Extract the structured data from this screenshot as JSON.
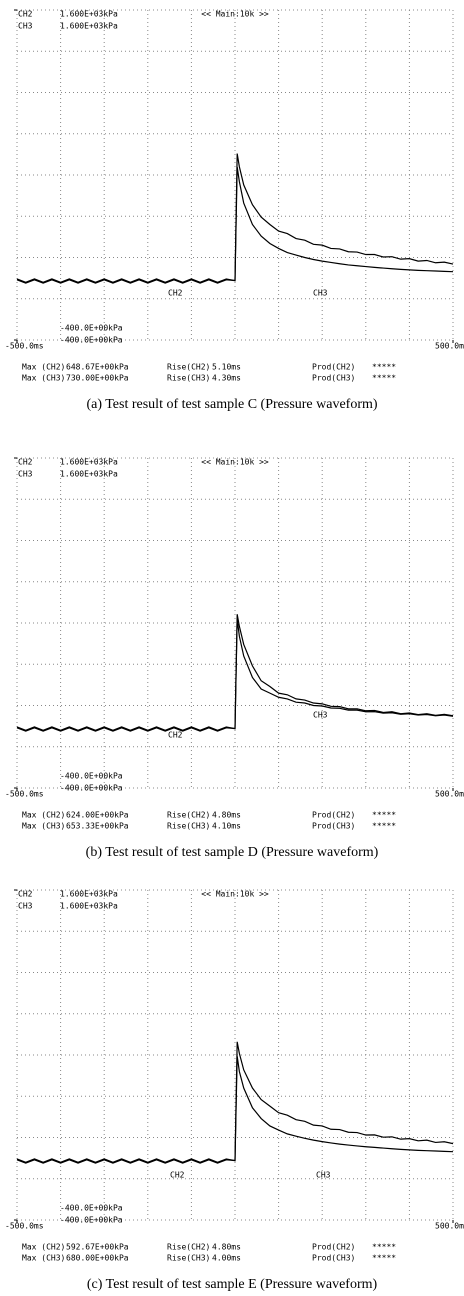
{
  "chart_data": [
    {
      "type": "line",
      "header": "<< Main:10k >>",
      "caption": "(a)  Test result of test sample C (Pressure waveform)",
      "x": [
        -500,
        -480,
        -460,
        -440,
        -420,
        -400,
        -380,
        -360,
        -340,
        -320,
        -300,
        -280,
        -260,
        -240,
        -220,
        -200,
        -180,
        -160,
        -140,
        -120,
        -100,
        -80,
        -60,
        -40,
        -20,
        0,
        5,
        10,
        20,
        40,
        60,
        80,
        100,
        120,
        140,
        160,
        180,
        200,
        220,
        240,
        260,
        280,
        300,
        320,
        340,
        360,
        380,
        400,
        420,
        440,
        460,
        480,
        500
      ],
      "xlim": [
        -500,
        500
      ],
      "xticks": [
        {
          "value": -500,
          "label": "-500.0ms"
        },
        {
          "value": 500,
          "label": "500.0ms"
        }
      ],
      "ylim": [
        -400,
        1600
      ],
      "yticks": [
        {
          "value": 1600,
          "label": "1.600E+03kPa"
        },
        {
          "value": -400,
          "label": "-400.0E+00kPa"
        }
      ],
      "grid_divisions": [
        10,
        8
      ],
      "series": [
        {
          "name": "CH2",
          "color": "#000000",
          "values": [
            -35,
            -55,
            -35,
            -55,
            -35,
            -55,
            -35,
            -55,
            -35,
            -55,
            -35,
            -55,
            -35,
            -55,
            -35,
            -55,
            -35,
            -55,
            -35,
            -55,
            -35,
            -55,
            -35,
            -55,
            -35,
            -40,
            648.67,
            560,
            430,
            300,
            230,
            185,
            155,
            130,
            115,
            100,
            88,
            78,
            70,
            62,
            55,
            50,
            45,
            40,
            36,
            32,
            28,
            25,
            22,
            20,
            18,
            16,
            14
          ]
        },
        {
          "name": "CH3",
          "color": "#000000",
          "values": [
            -30,
            -50,
            -30,
            -50,
            -30,
            -50,
            -30,
            -50,
            -30,
            -50,
            -30,
            -50,
            -30,
            -50,
            -30,
            -50,
            -30,
            -50,
            -30,
            -50,
            -30,
            -50,
            -30,
            -50,
            -30,
            -40,
            730,
            650,
            540,
            420,
            345,
            300,
            260,
            245,
            215,
            205,
            180,
            175,
            155,
            152,
            135,
            133,
            118,
            118,
            103,
            105,
            90,
            93,
            78,
            82,
            68,
            72,
            60
          ]
        }
      ],
      "stats": [
        {
          "max_label": "Max (CH2)",
          "max": "648.67E+00kPa",
          "rise_label": "Rise(CH2)",
          "rise": "5.10ms",
          "prod_label": "Prod(CH2)",
          "prod": "*****"
        },
        {
          "max_label": "Max (CH3)",
          "max": "730.00E+00kPa",
          "rise_label": "Rise(CH3)",
          "rise": "4.30ms",
          "prod_label": "Prod(CH3)",
          "prod": "*****"
        }
      ]
    },
    {
      "type": "line",
      "header": "<< Main:10k >>",
      "caption": "(b)  Test result of test sample D (Pressure waveform)",
      "x": [
        -500,
        -480,
        -460,
        -440,
        -420,
        -400,
        -380,
        -360,
        -340,
        -320,
        -300,
        -280,
        -260,
        -240,
        -220,
        -200,
        -180,
        -160,
        -140,
        -120,
        -100,
        -80,
        -60,
        -40,
        -20,
        0,
        5,
        10,
        20,
        40,
        60,
        80,
        100,
        120,
        140,
        160,
        180,
        200,
        220,
        240,
        260,
        280,
        300,
        320,
        340,
        360,
        380,
        400,
        420,
        440,
        460,
        480,
        500
      ],
      "xlim": [
        -500,
        500
      ],
      "xticks": [
        {
          "value": -500,
          "label": "-500.0ms"
        },
        {
          "value": 500,
          "label": "500.0ms"
        }
      ],
      "ylim": [
        -400,
        1600
      ],
      "yticks": [
        {
          "value": 1600,
          "label": "1.600E+03kPa"
        },
        {
          "value": -400,
          "label": "-400.0E+00kPa"
        }
      ],
      "grid_divisions": [
        10,
        8
      ],
      "series": [
        {
          "name": "CH2",
          "color": "#000000",
          "values": [
            -35,
            -55,
            -35,
            -55,
            -35,
            -55,
            -35,
            -55,
            -35,
            -55,
            -35,
            -55,
            -35,
            -55,
            -35,
            -55,
            -35,
            -55,
            -35,
            -55,
            -35,
            -55,
            -35,
            -55,
            -35,
            -40,
            624,
            520,
            400,
            270,
            200,
            175,
            150,
            140,
            120,
            115,
            100,
            97,
            85,
            83,
            72,
            72,
            62,
            63,
            54,
            56,
            47,
            50,
            42,
            45,
            38,
            42,
            35
          ]
        },
        {
          "name": "CH3",
          "color": "#000000",
          "values": [
            -30,
            -50,
            -30,
            -50,
            -30,
            -50,
            -30,
            -50,
            -30,
            -50,
            -30,
            -50,
            -30,
            -50,
            -30,
            -50,
            -30,
            -50,
            -30,
            -50,
            -30,
            -50,
            -30,
            -50,
            -30,
            -40,
            653.33,
            580,
            470,
            340,
            250,
            215,
            175,
            165,
            140,
            133,
            115,
            110,
            95,
            93,
            80,
            80,
            68,
            70,
            58,
            62,
            50,
            55,
            45,
            50,
            40,
            46,
            38
          ]
        }
      ],
      "stats": [
        {
          "max_label": "Max (CH2)",
          "max": "624.00E+00kPa",
          "rise_label": "Rise(CH2)",
          "rise": "4.80ms",
          "prod_label": "Prod(CH2)",
          "prod": "*****"
        },
        {
          "max_label": "Max (CH3)",
          "max": "653.33E+00kPa",
          "rise_label": "Rise(CH3)",
          "rise": "4.10ms",
          "prod_label": "Prod(CH3)",
          "prod": "*****"
        }
      ]
    },
    {
      "type": "line",
      "header": "<< Main:10k >>",
      "caption": "(c)  Test result of test sample E (Pressure waveform)",
      "x": [
        -500,
        -480,
        -460,
        -440,
        -420,
        -400,
        -380,
        -360,
        -340,
        -320,
        -300,
        -280,
        -260,
        -240,
        -220,
        -200,
        -180,
        -160,
        -140,
        -120,
        -100,
        -80,
        -60,
        -40,
        -20,
        0,
        5,
        10,
        20,
        40,
        60,
        80,
        100,
        120,
        140,
        160,
        180,
        200,
        220,
        240,
        260,
        280,
        300,
        320,
        340,
        360,
        380,
        400,
        420,
        440,
        460,
        480,
        500
      ],
      "xlim": [
        -500,
        500
      ],
      "xticks": [
        {
          "value": -500,
          "label": "-500.0ms"
        },
        {
          "value": 500,
          "label": "500.0ms"
        }
      ],
      "ylim": [
        -400,
        1600
      ],
      "yticks": [
        {
          "value": 1600,
          "label": "1.600E+03kPa"
        },
        {
          "value": -400,
          "label": "-400.0E+00kPa"
        }
      ],
      "grid_divisions": [
        10,
        8
      ],
      "series": [
        {
          "name": "CH2",
          "color": "#000000",
          "values": [
            -35,
            -55,
            -35,
            -55,
            -35,
            -55,
            -35,
            -55,
            -35,
            -55,
            -35,
            -55,
            -35,
            -55,
            -35,
            -55,
            -35,
            -55,
            -35,
            -55,
            -35,
            -55,
            -35,
            -55,
            -35,
            -40,
            592.67,
            500,
            400,
            280,
            215,
            170,
            145,
            122,
            108,
            95,
            84,
            75,
            67,
            60,
            54,
            49,
            44,
            40,
            36,
            32,
            28,
            25,
            22,
            20,
            18,
            16,
            14
          ]
        },
        {
          "name": "CH3",
          "color": "#000000",
          "values": [
            -30,
            -50,
            -30,
            -50,
            -30,
            -50,
            -30,
            -50,
            -30,
            -50,
            -30,
            -50,
            -30,
            -50,
            -30,
            -50,
            -30,
            -50,
            -30,
            -50,
            -30,
            -50,
            -30,
            -50,
            -30,
            -40,
            680,
            610,
            510,
            400,
            330,
            290,
            250,
            235,
            208,
            198,
            175,
            170,
            150,
            148,
            132,
            130,
            115,
            116,
            102,
            104,
            90,
            93,
            80,
            84,
            70,
            74,
            63
          ]
        }
      ],
      "stats": [
        {
          "max_label": "Max (CH2)",
          "max": "592.67E+00kPa",
          "rise_label": "Rise(CH2)",
          "rise": "4.80ms",
          "prod_label": "Prod(CH2)",
          "prod": "*****"
        },
        {
          "max_label": "Max (CH3)",
          "max": "680.00E+00kPa",
          "rise_label": "Rise(CH3)",
          "rise": "4.00ms",
          "prod_label": "Prod(CH3)",
          "prod": "*****"
        }
      ]
    }
  ]
}
